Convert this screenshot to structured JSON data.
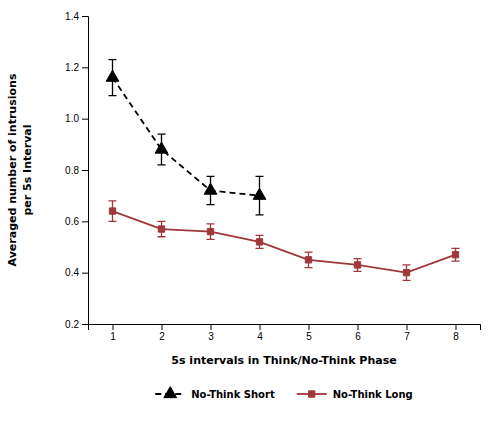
{
  "chart_data": {
    "type": "line",
    "xlabel": "5s intervals in Think/No-Think Phase",
    "ylabel": "Averaged number of intrusions\nper 5s Interval",
    "xlim": [
      0.5,
      8.5
    ],
    "xticks": [
      1,
      2,
      3,
      4,
      5,
      6,
      7,
      8
    ],
    "ylim": [
      0.2,
      1.4
    ],
    "yticks": [
      0.2,
      0.4,
      0.6,
      0.8,
      {
        "value": 1.0,
        "label": "1.0"
      },
      1.2,
      1.4
    ],
    "grid": false,
    "legend": "bottom",
    "series": [
      {
        "name": "No-Think Short",
        "color": "#000000",
        "marker": "triangle",
        "line_style": "dashed",
        "x": [
          1,
          2,
          3,
          4
        ],
        "values": [
          1.16,
          0.88,
          0.72,
          0.7
        ],
        "errors": [
          0.07,
          0.06,
          0.055,
          0.075
        ]
      },
      {
        "name": "No-Think Long",
        "color": "#a0373a",
        "marker": "square",
        "line_style": "solid",
        "x": [
          1,
          2,
          3,
          4,
          5,
          6,
          7,
          8
        ],
        "values": [
          0.64,
          0.57,
          0.56,
          0.52,
          0.45,
          0.43,
          0.4,
          0.47
        ],
        "errors": [
          0.04,
          0.03,
          0.03,
          0.025,
          0.03,
          0.025,
          0.03,
          0.025
        ]
      }
    ]
  }
}
